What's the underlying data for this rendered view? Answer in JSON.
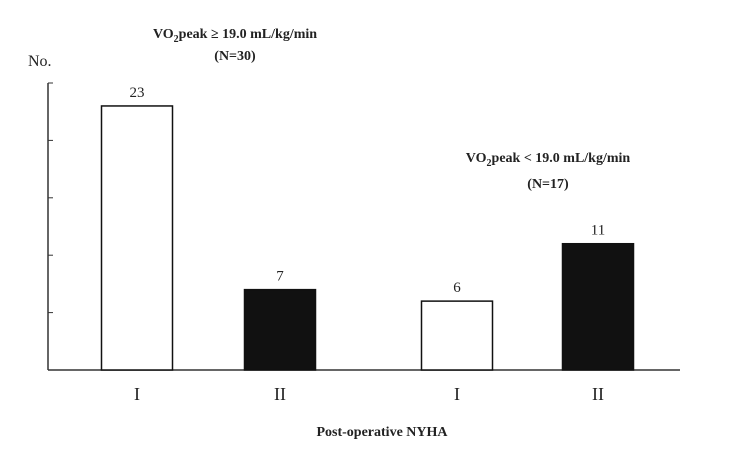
{
  "chart_data": {
    "type": "bar",
    "ylabel": "No.",
    "xlabel": "Post-operative NYHA",
    "ylim": [
      0,
      25
    ],
    "grid": false,
    "groups": [
      {
        "title_prefix": "VO",
        "title_sub": "2",
        "title_rest": "peak ≥ 19.0 mL/kg/min",
        "n_label": "(N=30)",
        "bars": [
          {
            "category": "I",
            "value": 23,
            "value_label": "23",
            "fill": "#ffffff"
          },
          {
            "category": "II",
            "value": 7,
            "value_label": "7",
            "fill": "#111111"
          }
        ]
      },
      {
        "title_prefix": "VO",
        "title_sub": "2",
        "title_rest": "peak < 19.0 mL/kg/min",
        "n_label": "(N=17)",
        "bars": [
          {
            "category": "I",
            "value": 6,
            "value_label": "6",
            "fill": "#ffffff"
          },
          {
            "category": "II",
            "value": 11,
            "value_label": "11",
            "fill": "#111111"
          }
        ]
      }
    ]
  }
}
